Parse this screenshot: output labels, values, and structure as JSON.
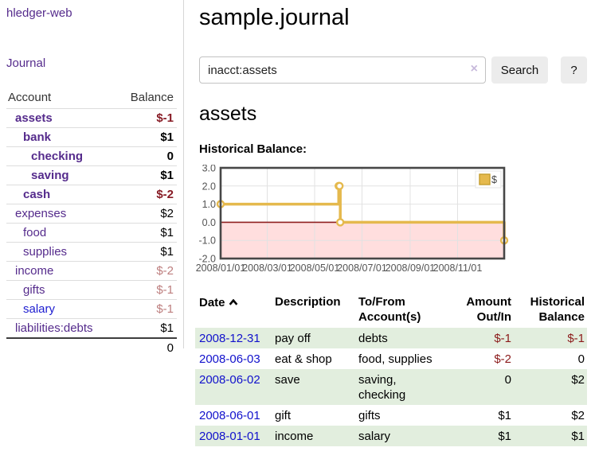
{
  "sidebar": {
    "app_link": "hledger-web",
    "journal_link": "Journal",
    "table": {
      "headers": {
        "account": "Account",
        "balance": "Balance"
      },
      "accounts": [
        {
          "name": "assets",
          "balance": "$-1"
        },
        {
          "name": "bank",
          "balance": "$1"
        },
        {
          "name": "checking",
          "balance": "0"
        },
        {
          "name": "saving",
          "balance": "$1"
        },
        {
          "name": "cash",
          "balance": "$-2"
        },
        {
          "name": "expenses",
          "balance": "$2"
        },
        {
          "name": "food",
          "balance": "$1"
        },
        {
          "name": "supplies",
          "balance": "$1"
        },
        {
          "name": "income",
          "balance": "$-2"
        },
        {
          "name": "gifts",
          "balance": "$-1"
        },
        {
          "name": "salary",
          "balance": "$-1"
        },
        {
          "name": "liabilities:debts",
          "balance": "$1"
        }
      ],
      "total": "0"
    }
  },
  "main": {
    "title": "sample.journal",
    "search": {
      "value": "inacct:assets",
      "clear_icon": "×",
      "button_label": "Search",
      "help_label": "?"
    },
    "section_title": "assets",
    "chart_label": "Historical Balance:",
    "table": {
      "headers": {
        "date": "Date",
        "description": "Description",
        "tofrom": "To/From Account(s)",
        "amount": "Amount Out/In",
        "balance": "Historical Balance"
      },
      "rows": [
        {
          "date": "2008-12-31",
          "description": "pay off",
          "tofrom": "debts",
          "amount": "$-1",
          "balance": "$-1"
        },
        {
          "date": "2008-06-03",
          "description": "eat & shop",
          "tofrom": "food, supplies",
          "amount": "$-2",
          "balance": "0"
        },
        {
          "date": "2008-06-02",
          "description": "save",
          "tofrom": "saving, checking",
          "amount": "0",
          "balance": "$2"
        },
        {
          "date": "2008-06-01",
          "description": "gift",
          "tofrom": "gifts",
          "amount": "$1",
          "balance": "$2"
        },
        {
          "date": "2008-01-01",
          "description": "income",
          "tofrom": "salary",
          "amount": "$1",
          "balance": "$1"
        }
      ]
    }
  },
  "chart_data": {
    "type": "line",
    "title": "Historical Balance",
    "legend": "$",
    "legend_position": "top-right",
    "step": true,
    "grid": true,
    "negative_region_shaded": true,
    "x_domain_days": 365,
    "ylim": [
      -2,
      3
    ],
    "y_ticks": [
      3,
      2,
      1,
      0,
      -1,
      -2
    ],
    "x_ticks": [
      {
        "label": "2008/01/01",
        "day": 0
      },
      {
        "label": "2008/03/01",
        "day": 60
      },
      {
        "label": "2008/05/01",
        "day": 121
      },
      {
        "label": "2008/07/01",
        "day": 182
      },
      {
        "label": "2008/09/01",
        "day": 244
      },
      {
        "label": "2008/11/01",
        "day": 305
      }
    ],
    "points": [
      {
        "date": "2008-01-01",
        "day": 0,
        "value": 1
      },
      {
        "date": "2008-06-01",
        "day": 152,
        "value": 2
      },
      {
        "date": "2008-06-02",
        "day": 153,
        "value": 2
      },
      {
        "date": "2008-06-03",
        "day": 154,
        "value": 0
      },
      {
        "date": "2008-12-31",
        "day": 365,
        "value": -1
      }
    ]
  },
  "colors": {
    "link_purple": "#552b8c",
    "link_blue": "#1d1dd0",
    "date_link_blue": "#1111cc",
    "negative_dark": "#871b25",
    "negative_muted": "#bd7e7e",
    "register_negative": "#8b1a1a",
    "row_green": "#e2eede",
    "button_bg": "#ececec",
    "chart_line": "#e5b94d",
    "chart_negative_fill": "#ffdede",
    "chart_zero_line": "#8f1f1f",
    "chart_frame": "#474747",
    "chart_grid": "#e2e2e2",
    "chart_tick_text": "#545454"
  }
}
